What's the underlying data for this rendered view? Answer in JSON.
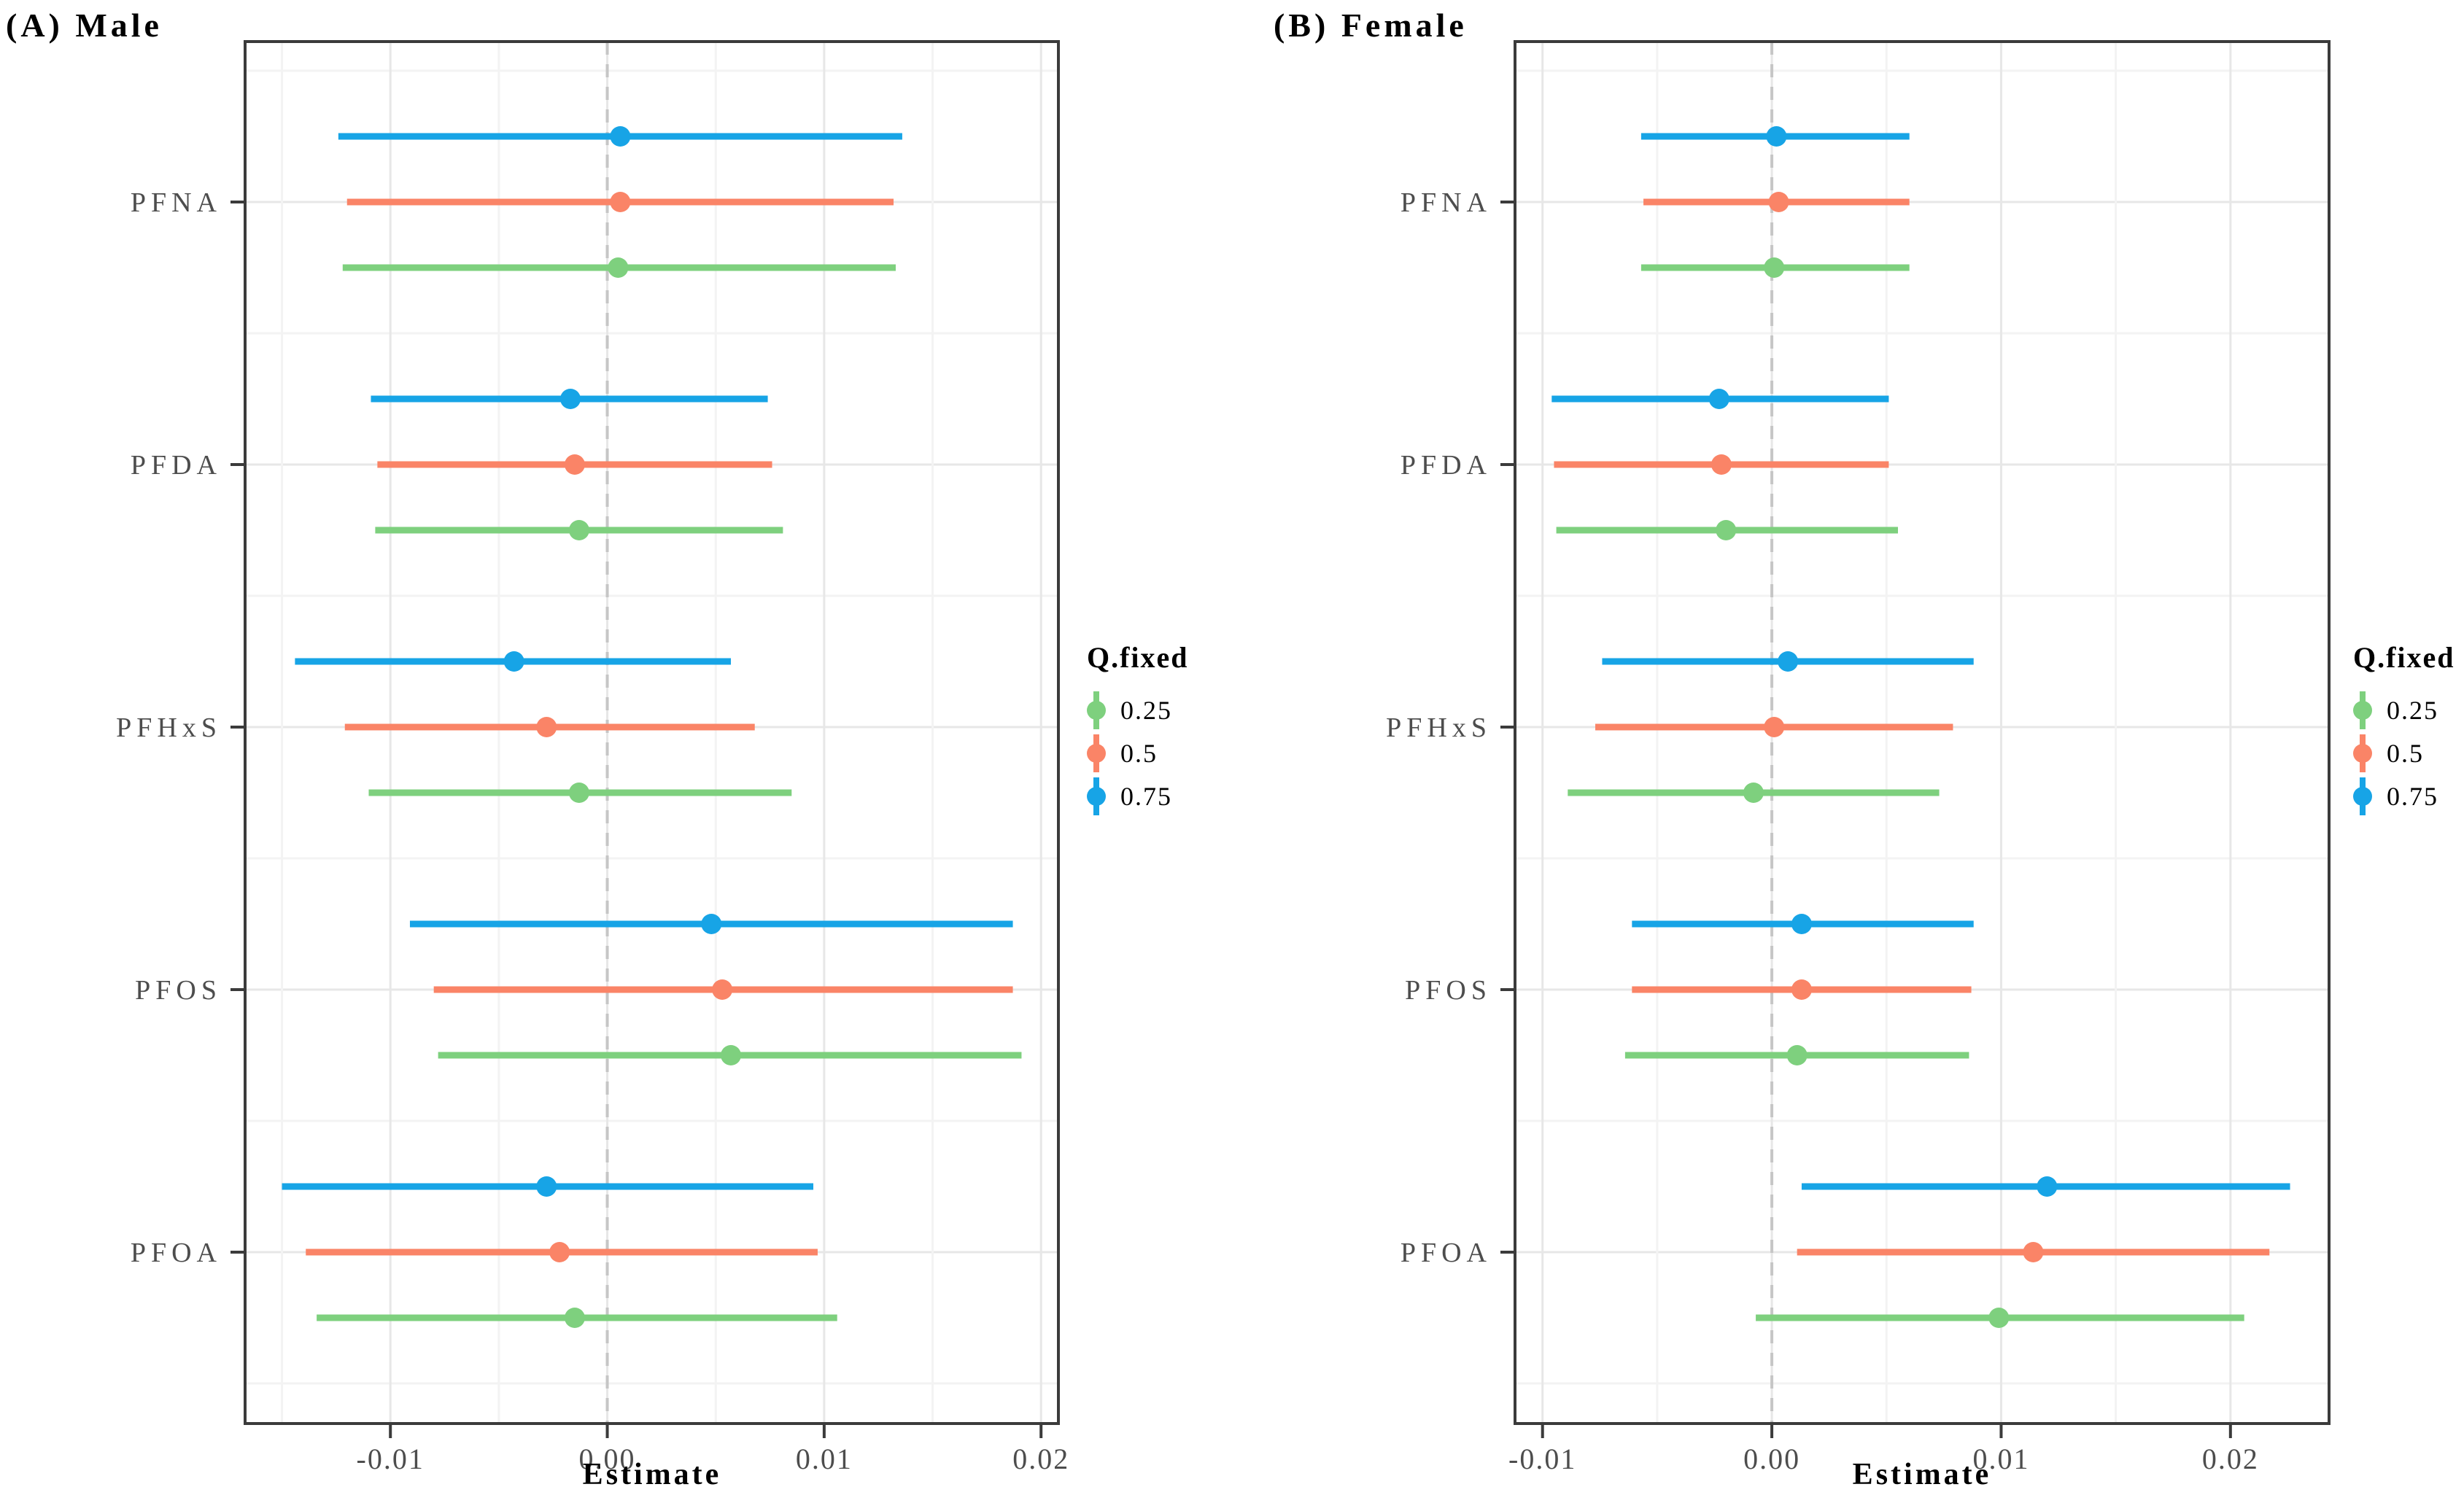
{
  "figure": {
    "background": "#ffffff",
    "text_color_ticks": "#4d4d4d",
    "axis_color": "#3b3b3b"
  },
  "legend": {
    "title": "Q.fixed",
    "entries": [
      {
        "label": "0.25",
        "color": "#7ED07E"
      },
      {
        "label": "0.5",
        "color": "#FA8467"
      },
      {
        "label": "0.75",
        "color": "#17A4E6"
      }
    ]
  },
  "chart_data": [
    {
      "type": "pointrange_forest",
      "panel": "A",
      "title": "(A) Male",
      "xlabel": "Estimate",
      "legend_title": "Q.fixed",
      "legend_position": "right",
      "grid": true,
      "categories": [
        "PFNA",
        "PFDA",
        "PFHxS",
        "PFOS",
        "PFOA"
      ],
      "xlim": [
        -0.0167,
        0.0208
      ],
      "x_ticks": [
        -0.01,
        0,
        0.01,
        0.02
      ],
      "x_tick_labels": [
        "-0.01",
        "0.00",
        "0.01",
        "0.02"
      ],
      "x_minor_ticks": [
        -0.015,
        -0.005,
        0.005,
        0.015
      ],
      "zero_line": 0,
      "series": [
        {
          "name": "0.25",
          "color": "#7ED07E",
          "values": [
            {
              "est": 0.0005,
              "lo": -0.0122,
              "hi": 0.0133
            },
            {
              "est": -0.0013,
              "lo": -0.0107,
              "hi": 0.0081
            },
            {
              "est": -0.0013,
              "lo": -0.011,
              "hi": 0.0085
            },
            {
              "est": 0.0057,
              "lo": -0.0078,
              "hi": 0.0191
            },
            {
              "est": -0.0015,
              "lo": -0.0134,
              "hi": 0.0106
            }
          ]
        },
        {
          "name": "0.5",
          "color": "#FA8467",
          "values": [
            {
              "est": 0.0006,
              "lo": -0.012,
              "hi": 0.0132
            },
            {
              "est": -0.0015,
              "lo": -0.0106,
              "hi": 0.0076
            },
            {
              "est": -0.0028,
              "lo": -0.0121,
              "hi": 0.0068
            },
            {
              "est": 0.0053,
              "lo": -0.008,
              "hi": 0.0187
            },
            {
              "est": -0.0022,
              "lo": -0.0139,
              "hi": 0.0097
            }
          ]
        },
        {
          "name": "0.75",
          "color": "#17A4E6",
          "values": [
            {
              "est": 0.0006,
              "lo": -0.0124,
              "hi": 0.0136
            },
            {
              "est": -0.0017,
              "lo": -0.0109,
              "hi": 0.0074
            },
            {
              "est": -0.0043,
              "lo": -0.0144,
              "hi": 0.0057
            },
            {
              "est": 0.0048,
              "lo": -0.0091,
              "hi": 0.0187
            },
            {
              "est": -0.0028,
              "lo": -0.015,
              "hi": 0.0095
            }
          ]
        }
      ]
    },
    {
      "type": "pointrange_forest",
      "panel": "B",
      "title": "(B) Female",
      "xlabel": "Estimate",
      "legend_title": "Q.fixed",
      "legend_position": "right",
      "grid": true,
      "categories": [
        "PFNA",
        "PFDA",
        "PFHxS",
        "PFOS",
        "PFOA"
      ],
      "xlim": [
        -0.0112,
        0.0243
      ],
      "x_ticks": [
        -0.01,
        0,
        0.01,
        0.02
      ],
      "x_tick_labels": [
        "-0.01",
        "0.00",
        "0.01",
        "0.02"
      ],
      "x_minor_ticks": [
        -0.005,
        0.005,
        0.015
      ],
      "zero_line": 0,
      "series": [
        {
          "name": "0.25",
          "color": "#7ED07E",
          "values": [
            {
              "est": 0.0001,
              "lo": -0.0057,
              "hi": 0.006
            },
            {
              "est": -0.002,
              "lo": -0.0094,
              "hi": 0.0055
            },
            {
              "est": -0.0008,
              "lo": -0.0089,
              "hi": 0.0073
            },
            {
              "est": 0.0011,
              "lo": -0.0064,
              "hi": 0.0086
            },
            {
              "est": 0.0099,
              "lo": -0.0007,
              "hi": 0.0206
            }
          ]
        },
        {
          "name": "0.5",
          "color": "#FA8467",
          "values": [
            {
              "est": 0.0003,
              "lo": -0.0056,
              "hi": 0.006
            },
            {
              "est": -0.0022,
              "lo": -0.0095,
              "hi": 0.0051
            },
            {
              "est": 0.0001,
              "lo": -0.0077,
              "hi": 0.0079
            },
            {
              "est": 0.0013,
              "lo": -0.0061,
              "hi": 0.0087
            },
            {
              "est": 0.0114,
              "lo": 0.0011,
              "hi": 0.0217
            }
          ]
        },
        {
          "name": "0.75",
          "color": "#17A4E6",
          "values": [
            {
              "est": 0.0002,
              "lo": -0.0057,
              "hi": 0.006
            },
            {
              "est": -0.0023,
              "lo": -0.0096,
              "hi": 0.0051
            },
            {
              "est": 0.0007,
              "lo": -0.0074,
              "hi": 0.0088
            },
            {
              "est": 0.0013,
              "lo": -0.0061,
              "hi": 0.0088
            },
            {
              "est": 0.012,
              "lo": 0.0013,
              "hi": 0.0226
            }
          ]
        }
      ]
    }
  ]
}
